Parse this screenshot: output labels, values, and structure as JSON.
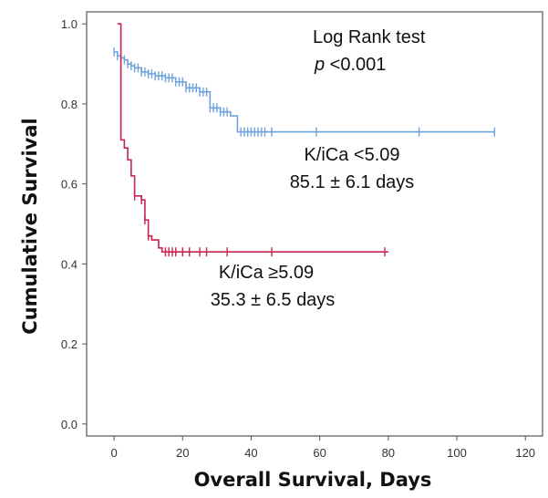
{
  "chart_data": {
    "type": "line",
    "title": "",
    "xlabel": "Overall Survival, Days",
    "ylabel": "Cumulative Survival",
    "xlim": [
      -8,
      125
    ],
    "ylim": [
      -0.03,
      1.03
    ],
    "x_ticks": [
      0,
      20,
      40,
      60,
      80,
      100,
      120
    ],
    "y_ticks": [
      0.0,
      0.2,
      0.4,
      0.6,
      0.8,
      1.0
    ],
    "y_tick_labels": [
      "0.0",
      "0.2",
      "0.4",
      "0.6",
      "0.8",
      "1.0"
    ],
    "grid": false,
    "step": true,
    "series": [
      {
        "name": "K/iCa <5.09",
        "color": "#6fa3dc",
        "x": [
          0,
          1,
          2,
          3,
          4,
          5,
          6,
          8,
          10,
          12,
          15,
          18,
          21,
          25,
          28,
          31,
          34,
          36,
          40,
          50,
          60,
          70,
          90,
          111
        ],
        "y": [
          0.93,
          0.92,
          0.915,
          0.91,
          0.9,
          0.895,
          0.89,
          0.88,
          0.875,
          0.87,
          0.865,
          0.855,
          0.84,
          0.83,
          0.79,
          0.78,
          0.77,
          0.73,
          0.73,
          0.73,
          0.73,
          0.73,
          0.73,
          0.73
        ],
        "censor_x": [
          0,
          1,
          2,
          3,
          4,
          5,
          6,
          7,
          8,
          9,
          10,
          11,
          12,
          13,
          14,
          15,
          16,
          17,
          18,
          19,
          20,
          21,
          22,
          23,
          24,
          25,
          26,
          27,
          28,
          29,
          30,
          31,
          32,
          33,
          37,
          38,
          39,
          40,
          41,
          42,
          43,
          44,
          46,
          59,
          89,
          111
        ]
      },
      {
        "name": "K/iCa ≥5.09",
        "color": "#c8224f",
        "x": [
          1,
          2,
          3,
          4,
          5,
          6,
          8,
          9,
          10,
          11,
          13,
          14,
          80
        ],
        "y": [
          1.0,
          0.71,
          0.69,
          0.66,
          0.62,
          0.57,
          0.56,
          0.51,
          0.47,
          0.46,
          0.44,
          0.43,
          0.43
        ],
        "censor_x": [
          6,
          8,
          9,
          10,
          15,
          16,
          17,
          18,
          20,
          22,
          25,
          27,
          33,
          46,
          79
        ]
      }
    ],
    "annotations": {
      "test_title": "Log Rank test",
      "p_symbol": "p",
      "p_value": " <0.001",
      "series1_label": "K/iCa <5.09",
      "series1_stat": "85.1 ± 6.1 days",
      "series2_label": "K/iCa ≥5.09",
      "series2_stat": "35.3 ± 6.5 days"
    }
  }
}
